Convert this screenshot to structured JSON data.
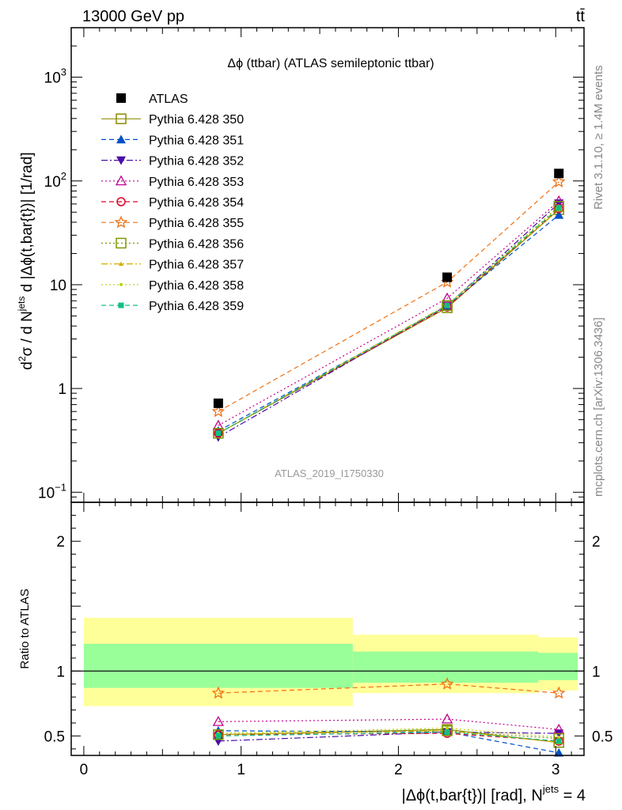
{
  "header": {
    "left": "13000 GeV pp",
    "right": "tt̄"
  },
  "side": {
    "rivet": "Rivet 3.1.10, ≥ 1.4M events",
    "mcplots": "mcplots.cern.ch [arXiv:1306.3436]"
  },
  "watermark": "ATLAS_2019_I1750330",
  "chart_data": [
    {
      "type": "line",
      "title": "Δϕ (ttbar) (ATLAS semileptonic ttbar)",
      "ylabel": "d²σ / d N^jets d |Δϕ(t,bar{t})| [1/rad]",
      "yscale": "log",
      "ylim": [
        0.08,
        3000
      ],
      "xlim": [
        -0.08,
        3.18
      ],
      "y_ticks": [
        {
          "v": 0.1,
          "b": "10",
          "e": "−1"
        },
        {
          "v": 1,
          "b": "1",
          "e": ""
        },
        {
          "v": 10,
          "b": "10",
          "e": ""
        },
        {
          "v": 100,
          "b": "10",
          "e": "2"
        },
        {
          "v": 1000,
          "b": "10",
          "e": "3"
        }
      ],
      "x": [
        0.855,
        2.31,
        3.02
      ],
      "series": [
        {
          "name": "ATLAS",
          "color": "#000000",
          "marker": "square-filled",
          "dash": "none",
          "values": [
            0.72,
            11.8,
            118
          ]
        },
        {
          "name": "Pythia 6.428 350",
          "color": "#8a8a00",
          "marker": "square-open",
          "dash": "solid",
          "values": [
            0.37,
            6.0,
            53
          ]
        },
        {
          "name": "Pythia 6.428 351",
          "color": "#0050c8",
          "marker": "triangle-up-filled",
          "dash": "dashed",
          "values": [
            0.39,
            6.2,
            47
          ]
        },
        {
          "name": "Pythia 6.428 352",
          "color": "#4b0ca8",
          "marker": "triangle-down-filled",
          "dash": "dashdot",
          "values": [
            0.34,
            6.3,
            61
          ]
        },
        {
          "name": "Pythia 6.428 353",
          "color": "#c0008c",
          "marker": "triangle-up-open",
          "dash": "dotted",
          "values": [
            0.44,
            7.4,
            64
          ]
        },
        {
          "name": "Pythia 6.428 354",
          "color": "#e0002a",
          "marker": "circle-open",
          "dash": "dashed",
          "values": [
            0.37,
            6.1,
            54
          ]
        },
        {
          "name": "Pythia 6.428 355",
          "color": "#f07010",
          "marker": "star-open",
          "dash": "dashed",
          "values": [
            0.6,
            10.6,
            98
          ]
        },
        {
          "name": "Pythia 6.428 356",
          "color": "#7a9a00",
          "marker": "square-open",
          "dash": "dotted",
          "values": [
            0.37,
            6.3,
            57
          ]
        },
        {
          "name": "Pythia 6.428 357",
          "color": "#d0b000",
          "marker": "tri-small",
          "dash": "dashdot",
          "values": [
            0.37,
            6.4,
            53
          ]
        },
        {
          "name": "Pythia 6.428 358",
          "color": "#b8d400",
          "marker": "dot-small",
          "dash": "dotted",
          "values": [
            0.37,
            6.3,
            57
          ]
        },
        {
          "name": "Pythia 6.428 359",
          "color": "#10c080",
          "marker": "square-small",
          "dash": "dashed",
          "values": [
            0.37,
            6.3,
            55
          ]
        }
      ]
    },
    {
      "type": "line",
      "ylabel": "Ratio to ATLAS",
      "xlabel": "|Δϕ(t,bar{t})| [rad], N",
      "xlabel_sup": "jets",
      "xlabel_suffix": " = 4",
      "ylim": [
        0.35,
        2.3
      ],
      "xlim": [
        -0.08,
        3.18
      ],
      "x_ticks": [
        0,
        1,
        2,
        3
      ],
      "y_ticks": [
        0.5,
        1,
        2
      ],
      "bands": [
        {
          "x0": 0.0,
          "x1": 1.71,
          "yellow": [
            0.73,
            1.41
          ],
          "green": [
            0.87,
            1.21
          ]
        },
        {
          "x0": 1.71,
          "x1": 2.89,
          "yellow": [
            0.83,
            1.28
          ],
          "green": [
            0.91,
            1.15
          ]
        },
        {
          "x0": 2.89,
          "x1": 3.14,
          "yellow": [
            0.85,
            1.26
          ],
          "green": [
            0.93,
            1.14
          ]
        }
      ],
      "x": [
        0.855,
        2.31,
        3.02
      ],
      "series": [
        {
          "name": "Pythia 6.428 350",
          "values": [
            0.51,
            0.55,
            0.45
          ]
        },
        {
          "name": "Pythia 6.428 351",
          "values": [
            0.54,
            0.53,
            0.37
          ]
        },
        {
          "name": "Pythia 6.428 352",
          "values": [
            0.46,
            0.53,
            0.52
          ]
        },
        {
          "name": "Pythia 6.428 353",
          "values": [
            0.61,
            0.63,
            0.55
          ]
        },
        {
          "name": "Pythia 6.428 354",
          "values": [
            0.51,
            0.52,
            0.46
          ]
        },
        {
          "name": "Pythia 6.428 355",
          "values": [
            0.83,
            0.9,
            0.83
          ]
        },
        {
          "name": "Pythia 6.428 356",
          "values": [
            0.51,
            0.54,
            0.48
          ]
        },
        {
          "name": "Pythia 6.428 357",
          "values": [
            0.51,
            0.54,
            0.45
          ]
        },
        {
          "name": "Pythia 6.428 358",
          "values": [
            0.52,
            0.56,
            0.49
          ]
        },
        {
          "name": "Pythia 6.428 359",
          "values": [
            0.5,
            0.53,
            0.46
          ]
        }
      ]
    }
  ]
}
